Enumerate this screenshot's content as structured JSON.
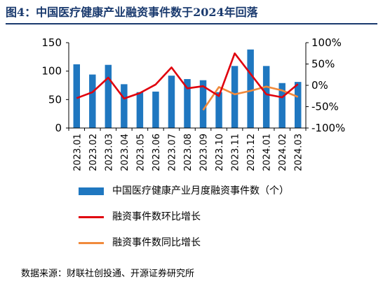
{
  "title": "图4：中国医疗健康产业融资事件数于2024年回落",
  "source": "数据来源：财联社创投通、开源证券研究所",
  "legend": {
    "bar": "中国医疗健康产业月度融资事件数（个）",
    "mom": "融资事件数环比增长",
    "yoy": "融资事件数同比增长"
  },
  "colors": {
    "bar": "#1f77c0",
    "mom": "#e0000d",
    "yoy": "#f08a3c",
    "title": "#1a3a6e"
  },
  "chart_data": {
    "type": "bar",
    "categories": [
      "2023.01",
      "2023.02",
      "2023.03",
      "2023.04",
      "2023.05",
      "2023.06",
      "2023.07",
      "2023.08",
      "2023.09",
      "2023.10",
      "2023.11",
      "2023.12",
      "2024.01",
      "2024.02",
      "2024.03"
    ],
    "series": [
      {
        "name": "中国医疗健康产业月度融资事件数（个）",
        "type": "bar",
        "axis": "left",
        "values": [
          112,
          94,
          111,
          77,
          63,
          64,
          92,
          86,
          84,
          63,
          109,
          138,
          109,
          79,
          81
        ]
      },
      {
        "name": "融资事件数环比增长",
        "type": "line",
        "axis": "right",
        "unit": "%",
        "values": [
          -30,
          -16,
          18,
          -31,
          -18,
          2,
          42,
          -7,
          -2,
          -25,
          75,
          27,
          -21,
          -28,
          3
        ]
      },
      {
        "name": "融资事件数同比增长",
        "type": "line",
        "axis": "right",
        "unit": "%",
        "values": [
          null,
          null,
          null,
          null,
          null,
          null,
          null,
          null,
          -58,
          -4,
          -21,
          -13,
          -3,
          -12,
          -27
        ]
      }
    ],
    "left_axis": {
      "min": 0,
      "max": 150,
      "ticks": [
        0,
        50,
        100,
        150
      ],
      "tick_labels": [
        "0",
        "50",
        "100",
        "150"
      ]
    },
    "right_axis": {
      "min": -100,
      "max": 100,
      "ticks": [
        -100,
        -50,
        0,
        50,
        100
      ],
      "tick_labels": [
        "-100%",
        "-50%",
        "0%",
        "50%",
        "100%"
      ]
    },
    "grid": false,
    "legend_position": "bottom"
  }
}
